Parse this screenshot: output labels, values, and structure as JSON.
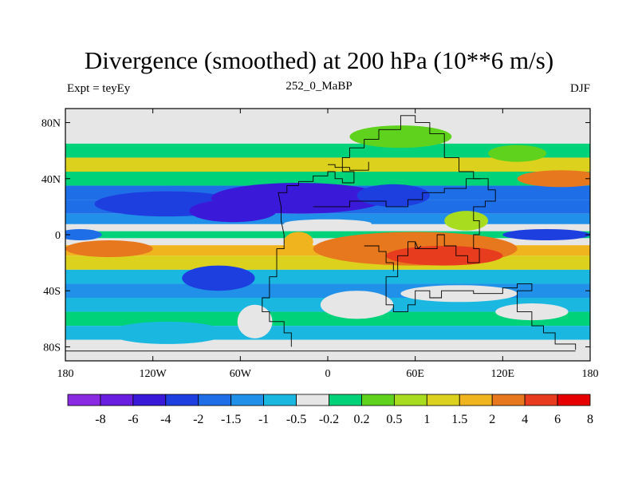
{
  "chart_data": {
    "type": "heatmap",
    "title": "Divergence (smoothed) at 200 hPa (10**6 m/s)",
    "left_label": "Expt = teyEy",
    "center_label": "252_0_MaBP",
    "right_label": "DJF",
    "x_range": [
      -180,
      180
    ],
    "y_range": [
      -90,
      90
    ],
    "x_ticks": [
      {
        "value": -180,
        "label": "180"
      },
      {
        "value": -120,
        "label": "120W"
      },
      {
        "value": -60,
        "label": "60W"
      },
      {
        "value": 0,
        "label": "0"
      },
      {
        "value": 60,
        "label": "60E"
      },
      {
        "value": 120,
        "label": "120E"
      },
      {
        "value": 180,
        "label": "180"
      }
    ],
    "y_ticks": [
      {
        "value": 80,
        "label": "80N"
      },
      {
        "value": 40,
        "label": "40N"
      },
      {
        "value": 0,
        "label": "0"
      },
      {
        "value": -40,
        "label": "40S"
      },
      {
        "value": -80,
        "label": "80S"
      }
    ],
    "colorbar": {
      "colors": [
        "#8a2be2",
        "#6a1ee0",
        "#3a1ad8",
        "#1e3fe0",
        "#1e6ee8",
        "#2090e8",
        "#1ab8e0",
        "#e6e6e6",
        "#00d27a",
        "#5fd21e",
        "#a8dc1e",
        "#dcd21e",
        "#f0b41e",
        "#e8781e",
        "#e83c1e",
        "#e60000"
      ],
      "labels": [
        "-8",
        "-6",
        "-4",
        "-2",
        "-1.5",
        "-1",
        "-0.5",
        "-0.2",
        "0.2",
        "0.5",
        "1",
        "1.5",
        "2",
        "4",
        "6",
        "8"
      ]
    },
    "bands": [
      {
        "lat": 80,
        "category": 7
      },
      {
        "lat": 70,
        "category": 7
      },
      {
        "lat": 60,
        "category": 8
      },
      {
        "lat": 50,
        "category": 11
      },
      {
        "lat": 40,
        "category": 8
      },
      {
        "lat": 30,
        "category": 4
      },
      {
        "lat": 20,
        "category": 4
      },
      {
        "lat": 10,
        "category": 5
      },
      {
        "lat": 5,
        "category": 7
      },
      {
        "lat": 0,
        "category": 8
      },
      {
        "lat": -5,
        "category": 7
      },
      {
        "lat": -10,
        "category": 12
      },
      {
        "lat": -20,
        "category": 11
      },
      {
        "lat": -30,
        "category": 6
      },
      {
        "lat": -40,
        "category": 5
      },
      {
        "lat": -50,
        "category": 6
      },
      {
        "lat": -60,
        "category": 8
      },
      {
        "lat": -70,
        "category": 6
      },
      {
        "lat": -80,
        "category": 7
      }
    ],
    "blobs": [
      {
        "lon": -110,
        "lat": 22,
        "rlon": 50,
        "rlat": 9,
        "category": 3
      },
      {
        "lon": -20,
        "lat": 26,
        "rlon": 60,
        "rlat": 11,
        "category": 2
      },
      {
        "lon": 45,
        "lat": 28,
        "rlon": 25,
        "rlat": 8,
        "category": 3
      },
      {
        "lon": -65,
        "lat": 17,
        "rlon": 30,
        "rlat": 8,
        "category": 2
      },
      {
        "lon": 150,
        "lat": 0,
        "rlon": 30,
        "rlat": 4,
        "category": 3
      },
      {
        "lon": -170,
        "lat": 0,
        "rlon": 15,
        "rlat": 4,
        "category": 4
      },
      {
        "lon": 60,
        "lat": -10,
        "rlon": 70,
        "rlat": 12,
        "category": 13
      },
      {
        "lon": -150,
        "lat": -10,
        "rlon": 30,
        "rlat": 6,
        "category": 13
      },
      {
        "lon": 80,
        "lat": -15,
        "rlon": 40,
        "rlat": 7,
        "category": 14
      },
      {
        "lon": 160,
        "lat": 40,
        "rlon": 30,
        "rlat": 6,
        "category": 13
      },
      {
        "lon": 95,
        "lat": 10,
        "rlon": 15,
        "rlat": 7,
        "category": 10
      },
      {
        "lon": 20,
        "lat": -50,
        "rlon": 25,
        "rlat": 10,
        "category": 7
      },
      {
        "lon": 90,
        "lat": -42,
        "rlon": 40,
        "rlat": 6,
        "category": 7
      },
      {
        "lon": 140,
        "lat": -55,
        "rlon": 25,
        "rlat": 6,
        "category": 7
      },
      {
        "lon": -75,
        "lat": -31,
        "rlon": 25,
        "rlat": 9,
        "category": 3
      },
      {
        "lon": -50,
        "lat": -62,
        "rlon": 12,
        "rlat": 12,
        "category": 7
      },
      {
        "lon": 50,
        "lat": 70,
        "rlon": 35,
        "rlat": 8,
        "category": 9
      },
      {
        "lon": 130,
        "lat": 58,
        "rlon": 20,
        "rlat": 6,
        "category": 9
      },
      {
        "lon": -20,
        "lat": -5,
        "rlon": 10,
        "rlat": 7,
        "category": 12
      },
      {
        "lon": -110,
        "lat": -70,
        "rlon": 40,
        "rlat": 8,
        "category": 6
      },
      {
        "lon": 0,
        "lat": 8,
        "rlon": 30,
        "rlat": 3,
        "category": 7
      }
    ],
    "coastlines": [
      [
        [
          -25,
          -80
        ],
        [
          -25,
          -70
        ],
        [
          -30,
          -70
        ],
        [
          -30,
          -62
        ],
        [
          -40,
          -62
        ],
        [
          -40,
          -55
        ],
        [
          -45,
          -55
        ],
        [
          -45,
          -45
        ],
        [
          -40,
          -45
        ],
        [
          -40,
          -30
        ],
        [
          -35,
          -30
        ],
        [
          -35,
          -10
        ],
        [
          -30,
          -10
        ],
        [
          -30,
          0
        ],
        [
          -32,
          10
        ],
        [
          -32,
          20
        ],
        [
          -34,
          30
        ],
        [
          -28,
          30
        ],
        [
          -28,
          35
        ],
        [
          -20,
          35
        ],
        [
          -20,
          38
        ],
        [
          -10,
          38
        ],
        [
          -10,
          42
        ],
        [
          0,
          42
        ],
        [
          0,
          45
        ],
        [
          5,
          45
        ],
        [
          5,
          40
        ],
        [
          10,
          40
        ],
        [
          10,
          37
        ],
        [
          18,
          37
        ],
        [
          18,
          45
        ],
        [
          10,
          45
        ],
        [
          10,
          55
        ],
        [
          15,
          55
        ],
        [
          15,
          62
        ],
        [
          25,
          62
        ],
        [
          25,
          68
        ],
        [
          35,
          68
        ],
        [
          35,
          75
        ],
        [
          50,
          75
        ],
        [
          50,
          85
        ],
        [
          60,
          85
        ],
        [
          60,
          80
        ],
        [
          70,
          80
        ],
        [
          70,
          72
        ],
        [
          80,
          72
        ],
        [
          80,
          55
        ],
        [
          90,
          55
        ],
        [
          90,
          45
        ],
        [
          100,
          45
        ],
        [
          100,
          40
        ],
        [
          110,
          40
        ],
        [
          110,
          32
        ],
        [
          115,
          32
        ],
        [
          115,
          24
        ],
        [
          108,
          24
        ],
        [
          108,
          20
        ],
        [
          100,
          20
        ],
        [
          100,
          10
        ],
        [
          104,
          10
        ],
        [
          104,
          0
        ],
        [
          100,
          0
        ],
        [
          100,
          -10
        ],
        [
          104,
          -10
        ],
        [
          104,
          -20
        ],
        [
          96,
          -20
        ],
        [
          96,
          -15
        ],
        [
          88,
          -15
        ],
        [
          88,
          -8
        ],
        [
          80,
          -8
        ],
        [
          80,
          0
        ],
        [
          75,
          0
        ],
        [
          75,
          -10
        ],
        [
          60,
          -10
        ],
        [
          60,
          -5
        ],
        [
          55,
          -5
        ],
        [
          55,
          -15
        ],
        [
          48,
          -15
        ],
        [
          48,
          -30
        ],
        [
          40,
          -30
        ],
        [
          40,
          -50
        ],
        [
          45,
          -50
        ],
        [
          45,
          -55
        ],
        [
          55,
          -55
        ],
        [
          55,
          -50
        ],
        [
          60,
          -50
        ],
        [
          60,
          -40
        ],
        [
          70,
          -40
        ],
        [
          70,
          -45
        ],
        [
          78,
          -45
        ],
        [
          78,
          -40
        ],
        [
          100,
          -40
        ],
        [
          100,
          -42
        ],
        [
          120,
          -42
        ],
        [
          120,
          -38
        ],
        [
          130,
          -38
        ],
        [
          130,
          -35
        ],
        [
          140,
          -35
        ],
        [
          140,
          -40
        ],
        [
          130,
          -40
        ],
        [
          130,
          -55
        ],
        [
          140,
          -55
        ],
        [
          140,
          -65
        ],
        [
          148,
          -65
        ],
        [
          148,
          -70
        ],
        [
          156,
          -70
        ],
        [
          156,
          -78
        ],
        [
          170,
          -78
        ],
        [
          170,
          -82
        ]
      ],
      [
        [
          -180,
          -83
        ],
        [
          170,
          -83
        ]
      ],
      [
        [
          -10,
          20
        ],
        [
          15,
          20
        ],
        [
          15,
          24
        ],
        [
          40,
          24
        ],
        [
          40,
          20
        ],
        [
          55,
          20
        ],
        [
          55,
          25
        ],
        [
          65,
          25
        ],
        [
          65,
          30
        ],
        [
          80,
          30
        ],
        [
          80,
          33
        ],
        [
          95,
          33
        ],
        [
          95,
          40
        ],
        [
          105,
          40
        ]
      ],
      [
        [
          0,
          50
        ],
        [
          5,
          50
        ],
        [
          5,
          48
        ],
        [
          15,
          48
        ],
        [
          15,
          46
        ],
        [
          28,
          46
        ],
        [
          28,
          52
        ]
      ],
      [
        [
          60,
          -5
        ],
        [
          62,
          -10
        ],
        [
          64,
          -8
        ]
      ],
      [
        [
          25,
          -8
        ],
        [
          35,
          -8
        ],
        [
          35,
          -12
        ],
        [
          40,
          -12
        ],
        [
          40,
          -20
        ],
        [
          45,
          -20
        ],
        [
          45,
          -26
        ]
      ]
    ]
  }
}
